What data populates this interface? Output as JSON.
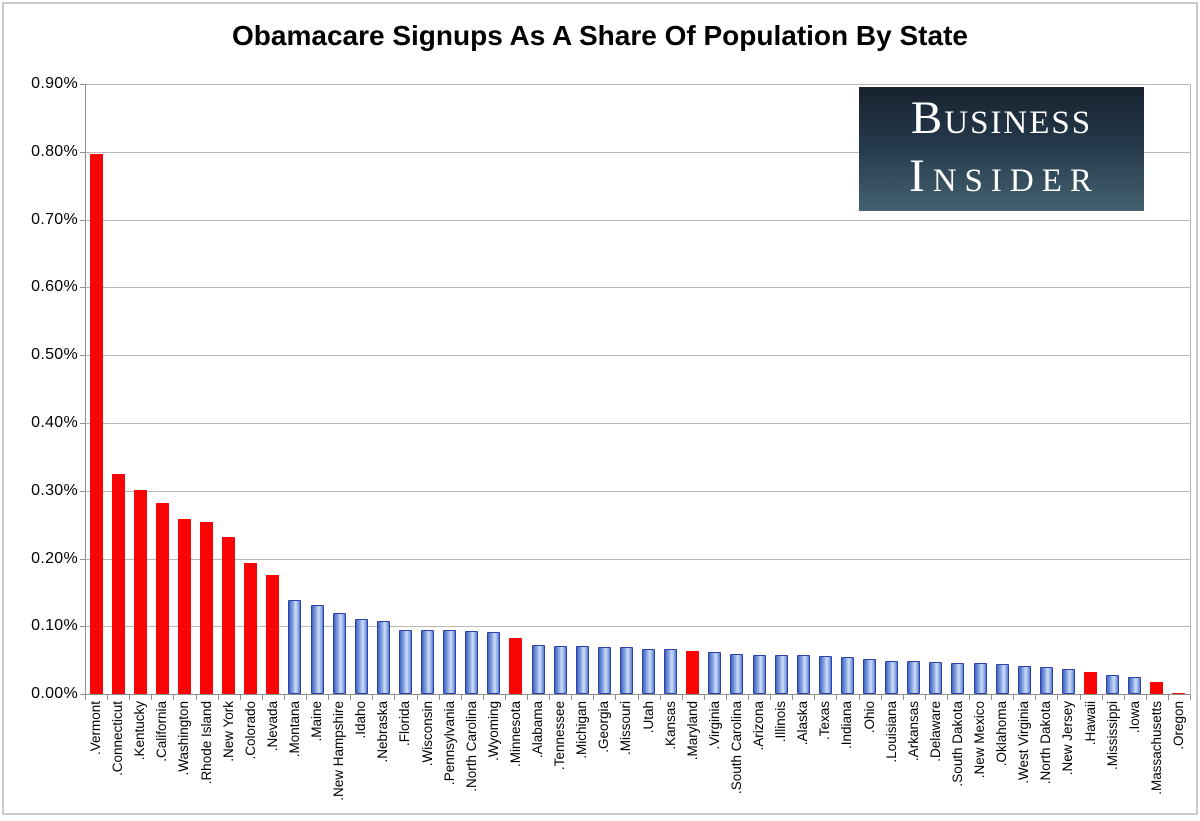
{
  "chart_data": {
    "type": "bar",
    "title": "Obamacare Signups As A Share Of Population By State",
    "xlabel": "",
    "ylabel": "",
    "ylim": [
      0,
      0.9
    ],
    "yticks": [
      "0.90%",
      "0.80%",
      "0.70%",
      "0.60%",
      "0.50%",
      "0.40%",
      "0.30%",
      "0.20%",
      "0.10%",
      "0.00%"
    ],
    "grid": true,
    "legend_position": "none",
    "value_unit": "percent of state population",
    "points": [
      {
        "label": ".Vermont",
        "value": 0.797,
        "color": "red"
      },
      {
        "label": ".Connecticut",
        "value": 0.325,
        "color": "red"
      },
      {
        "label": ".Kentucky",
        "value": 0.301,
        "color": "red"
      },
      {
        "label": ".California",
        "value": 0.281,
        "color": "red"
      },
      {
        "label": ".Washington",
        "value": 0.258,
        "color": "red"
      },
      {
        "label": ".Rhode Island",
        "value": 0.254,
        "color": "red"
      },
      {
        "label": ".New York",
        "value": 0.232,
        "color": "red"
      },
      {
        "label": ".Colorado",
        "value": 0.193,
        "color": "red"
      },
      {
        "label": ".Nevada",
        "value": 0.175,
        "color": "red"
      },
      {
        "label": ".Montana",
        "value": 0.138,
        "color": "blue"
      },
      {
        "label": ".Maine",
        "value": 0.132,
        "color": "blue"
      },
      {
        "label": ".New Hampshire",
        "value": 0.12,
        "color": "blue"
      },
      {
        "label": ".Idaho",
        "value": 0.11,
        "color": "blue"
      },
      {
        "label": ".Nebraska",
        "value": 0.107,
        "color": "blue"
      },
      {
        "label": ".Florida",
        "value": 0.095,
        "color": "blue"
      },
      {
        "label": ".Wisconsin",
        "value": 0.094,
        "color": "blue"
      },
      {
        "label": ".Pennsylvania",
        "value": 0.094,
        "color": "blue"
      },
      {
        "label": ".North Carolina",
        "value": 0.093,
        "color": "blue"
      },
      {
        "label": ".Wyoming",
        "value": 0.092,
        "color": "blue"
      },
      {
        "label": ".Minnesota",
        "value": 0.083,
        "color": "red"
      },
      {
        "label": ".Alabama",
        "value": 0.072,
        "color": "blue"
      },
      {
        "label": ".Tennessee",
        "value": 0.071,
        "color": "blue"
      },
      {
        "label": ".Michigan",
        "value": 0.071,
        "color": "blue"
      },
      {
        "label": ".Georgia",
        "value": 0.07,
        "color": "blue"
      },
      {
        "label": ".Missouri",
        "value": 0.069,
        "color": "blue"
      },
      {
        "label": ".Utah",
        "value": 0.067,
        "color": "blue"
      },
      {
        "label": ".Kansas",
        "value": 0.066,
        "color": "blue"
      },
      {
        "label": ".Maryland",
        "value": 0.064,
        "color": "red"
      },
      {
        "label": ".Virginia",
        "value": 0.062,
        "color": "blue"
      },
      {
        "label": ".South Carolina",
        "value": 0.059,
        "color": "blue"
      },
      {
        "label": ".Arizona",
        "value": 0.058,
        "color": "blue"
      },
      {
        "label": ".Illinois",
        "value": 0.057,
        "color": "blue"
      },
      {
        "label": ".Alaska",
        "value": 0.057,
        "color": "blue"
      },
      {
        "label": ".Texas",
        "value": 0.056,
        "color": "blue"
      },
      {
        "label": ".Indiana",
        "value": 0.055,
        "color": "blue"
      },
      {
        "label": ".Ohio",
        "value": 0.051,
        "color": "blue"
      },
      {
        "label": ".Louisiana",
        "value": 0.049,
        "color": "blue"
      },
      {
        "label": ".Arkansas",
        "value": 0.048,
        "color": "blue"
      },
      {
        "label": ".Delaware",
        "value": 0.047,
        "color": "blue"
      },
      {
        "label": ".South Dakota",
        "value": 0.046,
        "color": "blue"
      },
      {
        "label": ".New Mexico",
        "value": 0.045,
        "color": "blue"
      },
      {
        "label": ".Oklahoma",
        "value": 0.044,
        "color": "blue"
      },
      {
        "label": ".West Virginia",
        "value": 0.042,
        "color": "blue"
      },
      {
        "label": ".North Dakota",
        "value": 0.04,
        "color": "blue"
      },
      {
        "label": ".New Jersey",
        "value": 0.037,
        "color": "blue"
      },
      {
        "label": ".Hawaii",
        "value": 0.032,
        "color": "red"
      },
      {
        "label": ".Mississippi",
        "value": 0.028,
        "color": "blue"
      },
      {
        "label": ".Iowa",
        "value": 0.025,
        "color": "blue"
      },
      {
        "label": ".Massachusetts",
        "value": 0.017,
        "color": "red"
      },
      {
        "label": ".Oregon",
        "value": 0.002,
        "color": "red"
      }
    ]
  },
  "logo": {
    "line1": "Business",
    "line2": "Insider"
  },
  "colors": {
    "bar_red": "#fa0505",
    "bar_blue_border": "#2c41a7",
    "bar_blue_light": "#cddcf5",
    "bar_blue_dark": "#4164c2",
    "gridline": "#b8b8b8",
    "axis": "#8f8f8f",
    "frame_border": "#cbcbcb",
    "logo_top": "#18222f",
    "logo_bottom": "#44616f",
    "logo_text": "#ffffff",
    "title_text": "#000000"
  }
}
